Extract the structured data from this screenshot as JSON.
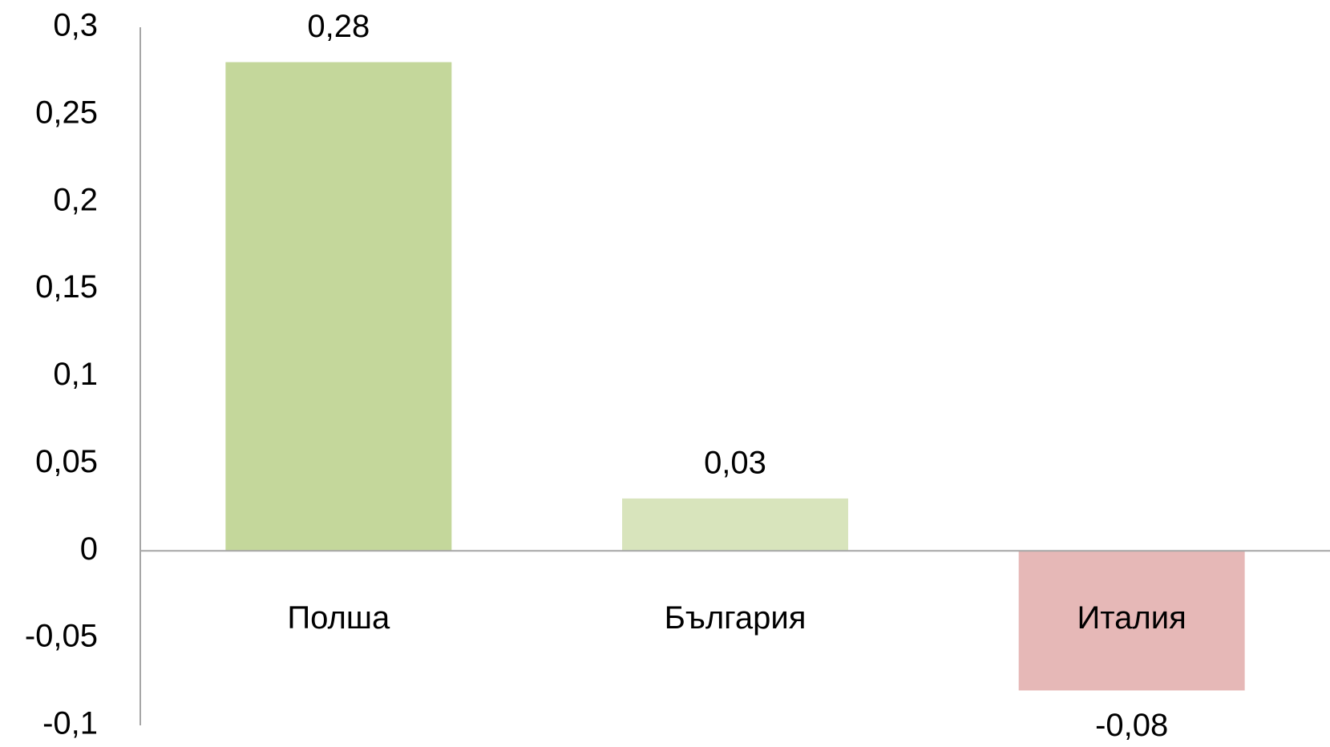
{
  "chart_data": {
    "type": "bar",
    "categories": [
      "Полша",
      "България",
      "Италия"
    ],
    "values": [
      0.28,
      0.03,
      -0.08
    ],
    "value_labels": [
      "0,28",
      "0,03",
      "-0,08"
    ],
    "colors": [
      "#c4d79b",
      "#d8e4bc",
      "#e6b8b7"
    ],
    "ylim": [
      -0.1,
      0.3
    ],
    "yticks": [
      {
        "value": -0.1,
        "label": "-0,1"
      },
      {
        "value": -0.05,
        "label": "-0,05"
      },
      0,
      {
        "value": 0.05,
        "label": "0,05"
      },
      {
        "value": 0.1,
        "label": "0,1"
      },
      {
        "value": 0.15,
        "label": "0,15"
      },
      {
        "value": 0.2,
        "label": "0,2"
      },
      {
        "value": 0.25,
        "label": "0,25"
      },
      {
        "value": 0.3,
        "label": "0,3"
      }
    ],
    "grid": false
  }
}
